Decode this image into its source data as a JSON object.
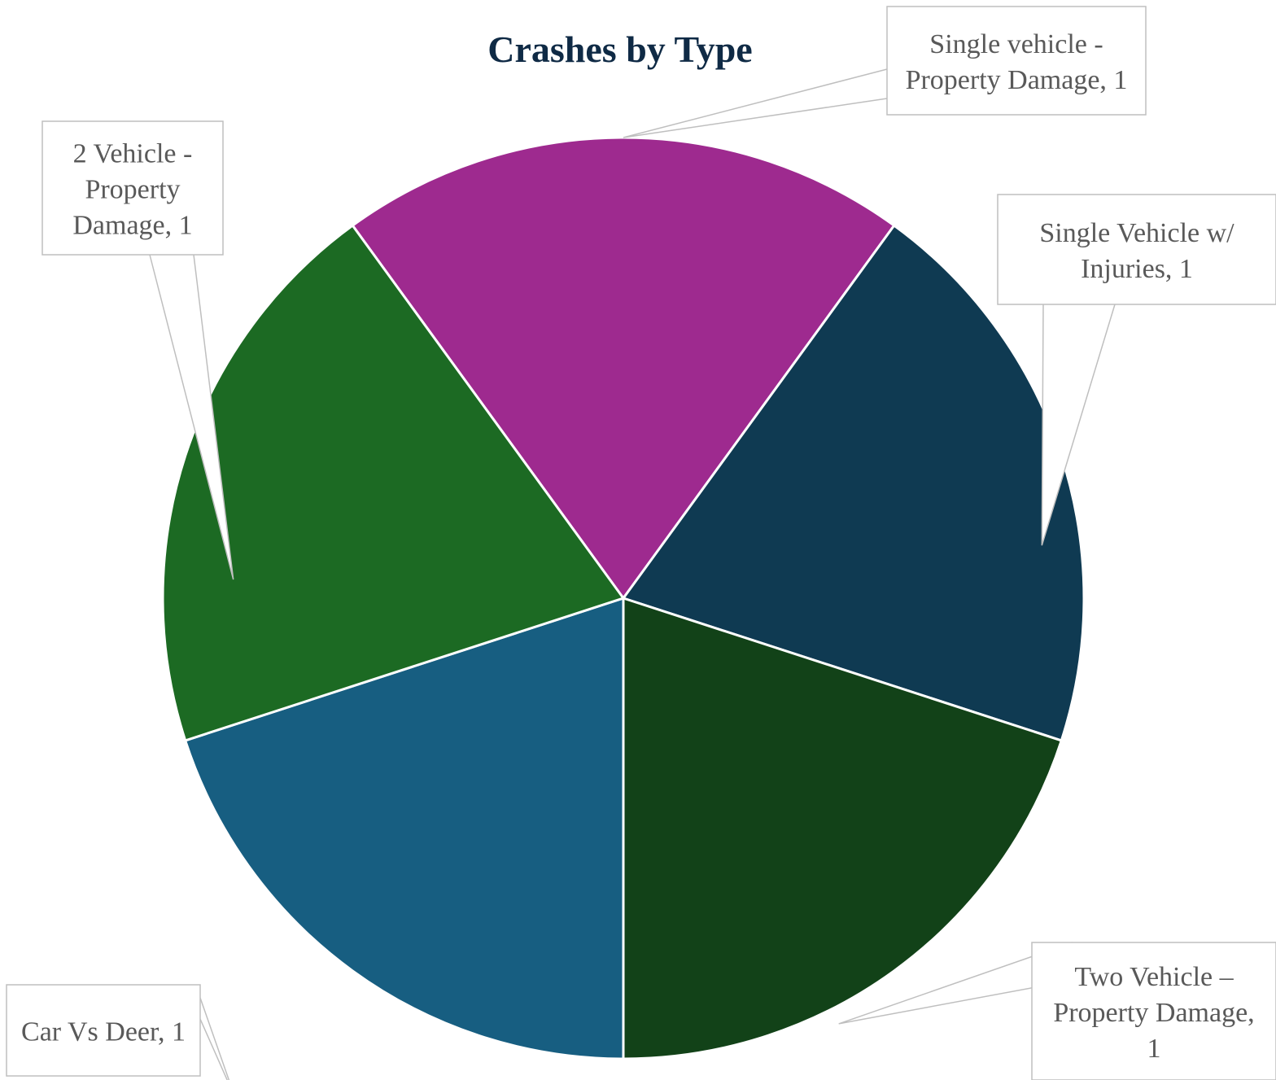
{
  "chart_data": {
    "type": "pie",
    "title": "Crashes by Type",
    "slices": [
      {
        "label": "Single vehicle - Property Damage",
        "value": 1,
        "color": "#9e2a8f",
        "label_lines": [
          "Single vehicle -",
          "Property Damage, 1"
        ]
      },
      {
        "label": "Single Vehicle w/ Injuries",
        "value": 1,
        "color": "#0f3a52",
        "label_lines": [
          "Single Vehicle w/",
          "Injuries, 1"
        ]
      },
      {
        "label": "Two Vehicle – Property Damage",
        "value": 1,
        "color": "#124218",
        "label_lines": [
          "Two Vehicle –",
          "Property Damage,",
          "1"
        ]
      },
      {
        "label": "Car Vs Deer",
        "value": 1,
        "color": "#175e81",
        "label_lines": [
          "Car Vs Deer, 1"
        ]
      },
      {
        "label": "2 Vehicle - Property Damage",
        "value": 1,
        "color": "#1c6a23",
        "label_lines": [
          "2 Vehicle -",
          "Property",
          "Damage, 1"
        ]
      }
    ],
    "legend": "none",
    "data_labels": "callouts"
  }
}
